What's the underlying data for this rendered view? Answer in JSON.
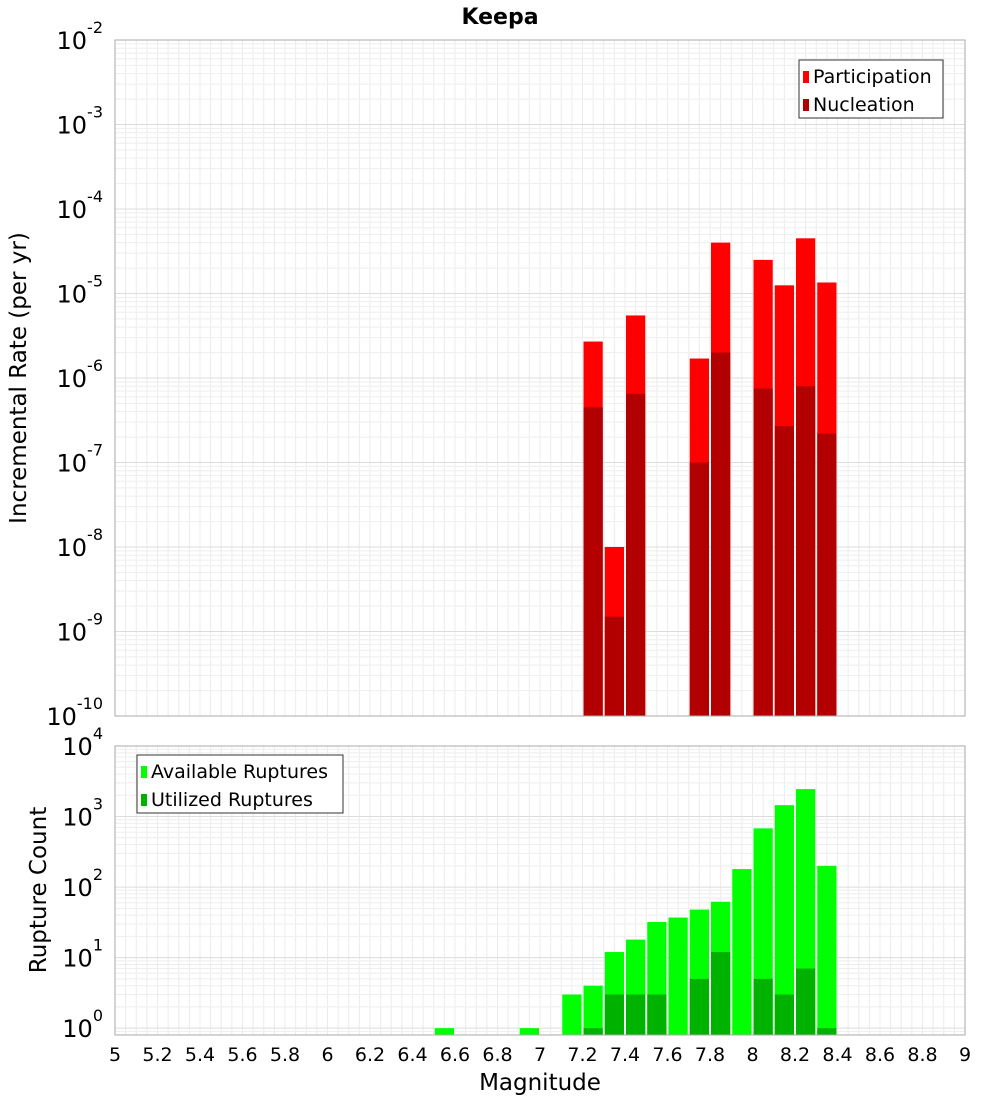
{
  "chart_data": [
    {
      "type": "bar",
      "title": "Keepa",
      "xlabel": "Magnitude",
      "ylabel": "Incremental Rate (per yr)",
      "yscale": "log",
      "xlim": [
        5,
        9
      ],
      "ylim": [
        1e-10,
        0.01
      ],
      "grid": true,
      "legend_position": "top-right",
      "x_tick_labels": [
        "5",
        "5.2",
        "5.4",
        "5.6",
        "5.8",
        "6",
        "6.2",
        "6.4",
        "6.6",
        "6.8",
        "7",
        "7.2",
        "7.4",
        "7.6",
        "7.8",
        "8",
        "8.2",
        "8.4",
        "8.6",
        "8.8",
        "9"
      ],
      "y_tick_labels": [
        {
          "base": "10",
          "exp": "-10",
          "value": 1e-10
        },
        {
          "base": "10",
          "exp": "-9",
          "value": 1e-09
        },
        {
          "base": "10",
          "exp": "-8",
          "value": 1e-08
        },
        {
          "base": "10",
          "exp": "-7",
          "value": 1e-07
        },
        {
          "base": "10",
          "exp": "-6",
          "value": 1e-06
        },
        {
          "base": "10",
          "exp": "-5",
          "value": 1e-05
        },
        {
          "base": "10",
          "exp": "-4",
          "value": 0.0001
        },
        {
          "base": "10",
          "exp": "-3",
          "value": 0.001
        },
        {
          "base": "10",
          "exp": "-2",
          "value": 0.01
        }
      ],
      "bin_width": 0.1,
      "series": [
        {
          "name": "Participation",
          "color": "#ff0000",
          "x": [
            7.25,
            7.35,
            7.45,
            7.75,
            7.85,
            8.05,
            8.15,
            8.25,
            8.35
          ],
          "values": [
            2.7e-06,
            1e-08,
            5.5e-06,
            1.7e-06,
            4e-05,
            2.5e-05,
            1.25e-05,
            4.5e-05,
            1.35e-05
          ]
        },
        {
          "name": "Nucleation",
          "color": "#b20000",
          "x": [
            7.25,
            7.35,
            7.45,
            7.75,
            7.85,
            8.05,
            8.15,
            8.25,
            8.35
          ],
          "values": [
            4.5e-07,
            1.5e-09,
            6.5e-07,
            1e-07,
            2e-06,
            7.5e-07,
            2.7e-07,
            8e-07,
            2.2e-07
          ]
        }
      ]
    },
    {
      "type": "bar",
      "title": "",
      "xlabel": "Magnitude",
      "ylabel": "Rupture Count",
      "yscale": "log",
      "xlim": [
        5,
        9
      ],
      "ylim": [
        0.8,
        10000.0
      ],
      "grid": true,
      "legend_position": "top-left",
      "x_tick_labels": [
        "5",
        "5.2",
        "5.4",
        "5.6",
        "5.8",
        "6",
        "6.2",
        "6.4",
        "6.6",
        "6.8",
        "7",
        "7.2",
        "7.4",
        "7.6",
        "7.8",
        "8",
        "8.2",
        "8.4",
        "8.6",
        "8.8",
        "9"
      ],
      "y_tick_labels": [
        {
          "base": "10",
          "exp": "0",
          "value": 1
        },
        {
          "base": "10",
          "exp": "1",
          "value": 10
        },
        {
          "base": "10",
          "exp": "2",
          "value": 100
        },
        {
          "base": "10",
          "exp": "3",
          "value": 1000
        },
        {
          "base": "10",
          "exp": "4",
          "value": 10000
        }
      ],
      "bin_width": 0.1,
      "series": [
        {
          "name": "Available Ruptures",
          "color": "#00ff00",
          "x": [
            6.55,
            6.95,
            7.15,
            7.25,
            7.35,
            7.45,
            7.55,
            7.65,
            7.75,
            7.85,
            7.95,
            8.05,
            8.15,
            8.25,
            8.35
          ],
          "values": [
            1,
            1,
            3,
            4,
            12,
            18,
            32,
            37,
            48,
            62,
            180,
            680,
            1450,
            2450,
            200
          ]
        },
        {
          "name": "Utilized Ruptures",
          "color": "#00b200",
          "x": [
            7.25,
            7.35,
            7.45,
            7.55,
            7.75,
            7.85,
            8.05,
            8.15,
            8.25,
            8.35
          ],
          "values": [
            1,
            3,
            3,
            3,
            5,
            12,
            5,
            3,
            7,
            1
          ]
        }
      ]
    }
  ]
}
